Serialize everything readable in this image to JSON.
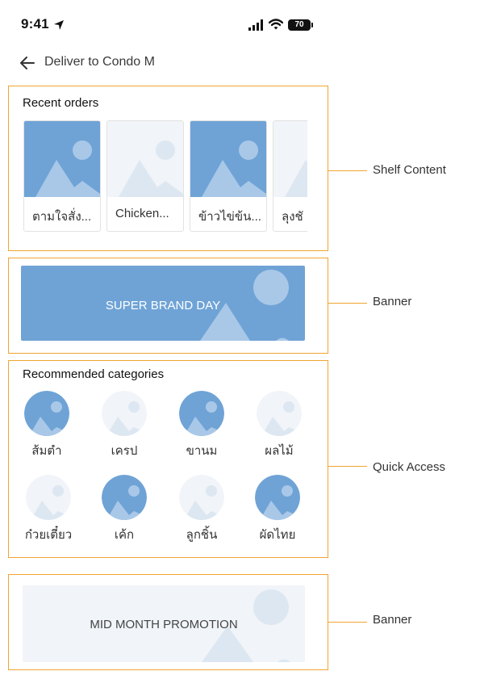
{
  "status_bar": {
    "time": "9:41",
    "battery": "70"
  },
  "header": {
    "title": "Deliver to Condo M"
  },
  "recent_orders": {
    "title": "Recent orders",
    "items": [
      {
        "label": "ตามใจสั่ง...",
        "style": "blue"
      },
      {
        "label": "Chicken...",
        "style": "light"
      },
      {
        "label": "ข้าวไข่ข้น...",
        "style": "blue"
      },
      {
        "label": "ลุงชั",
        "style": "light"
      }
    ]
  },
  "banner1": {
    "text": "SUPER BRAND DAY"
  },
  "categories": {
    "title": "Recommended categories",
    "items": [
      {
        "label": "ส้มตำ",
        "style": "blue"
      },
      {
        "label": "เครป",
        "style": "light"
      },
      {
        "label": "ขานม",
        "style": "blue"
      },
      {
        "label": "ผลไม้",
        "style": "light"
      },
      {
        "label": "ก๋วยเตี๋ยว",
        "style": "light"
      },
      {
        "label": "เค้ก",
        "style": "blue"
      },
      {
        "label": "ลูกชิ้น",
        "style": "light"
      },
      {
        "label": "ผัดไทย",
        "style": "blue"
      }
    ]
  },
  "banner2": {
    "text": "MID MONTH PROMOTION"
  },
  "annotations": {
    "shelf": "Shelf Content",
    "banner1": "Banner",
    "quick": "Quick Access",
    "banner2": "Banner"
  },
  "colors": {
    "accent_blue": "#6fa3d6",
    "placeholder_light": "#f1f4f8",
    "frame": "#f0a530"
  }
}
